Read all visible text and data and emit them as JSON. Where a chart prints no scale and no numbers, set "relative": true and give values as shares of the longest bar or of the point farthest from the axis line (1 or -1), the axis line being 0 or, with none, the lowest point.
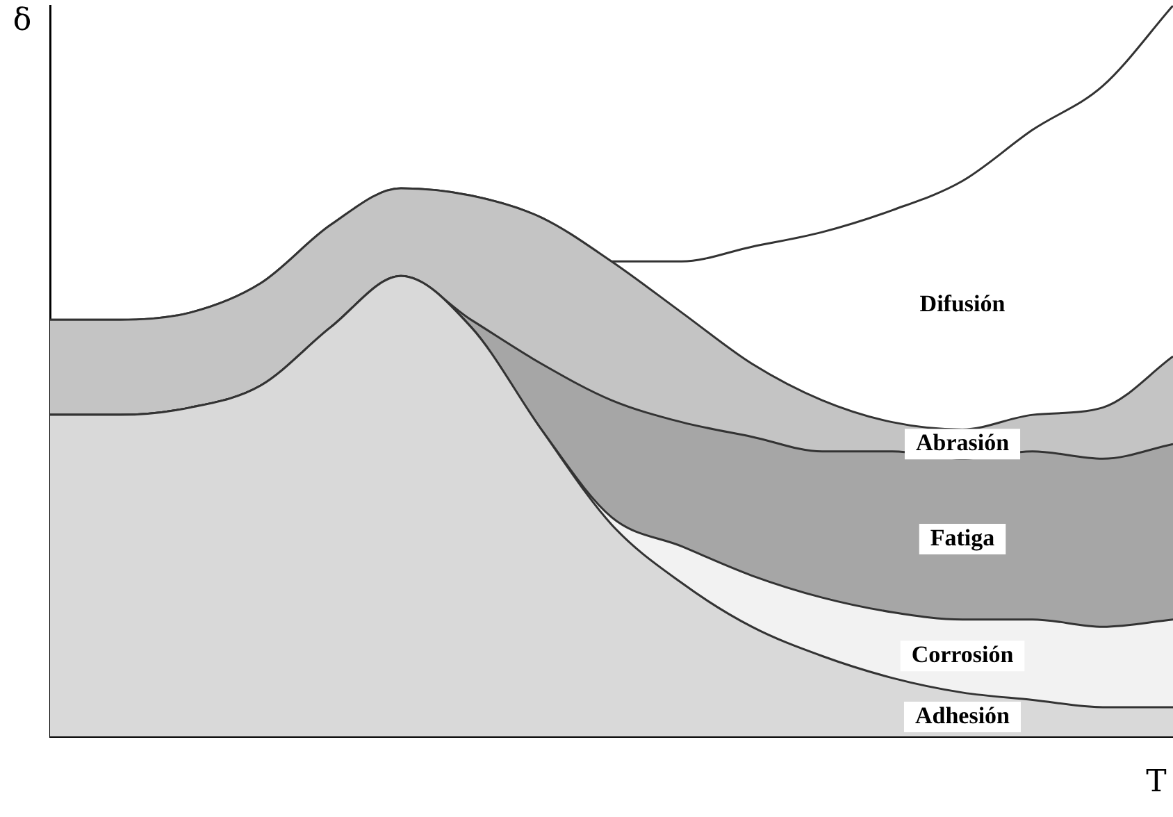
{
  "chart_data": {
    "type": "area",
    "xlabel": "T",
    "ylabel": "δ",
    "relative": true,
    "stacked": true,
    "categories": [
      null,
      null,
      null,
      null,
      null,
      null,
      null,
      null,
      null,
      null,
      null,
      null,
      null,
      null,
      null,
      null,
      null
    ],
    "series": [
      {
        "name": "Adhesión",
        "color": "#d9d9d9",
        "values": [
          0.44,
          0.44,
          0.45,
          0.48,
          0.56,
          0.63,
          0.56,
          0.42,
          0.29,
          0.21,
          0.15,
          0.11,
          0.08,
          0.06,
          0.05,
          0.04,
          0.04
        ]
      },
      {
        "name": "Corrosión",
        "color": "#f2f2f2",
        "values": [
          0,
          0,
          0,
          0,
          0,
          0,
          0,
          0,
          0.01,
          0.05,
          0.07,
          0.08,
          0.09,
          0.1,
          0.11,
          0.11,
          0.12
        ]
      },
      {
        "name": "Fatiga",
        "color": "#a6a6a6",
        "values": [
          0,
          0,
          0,
          0,
          0,
          0,
          0.01,
          0.09,
          0.16,
          0.17,
          0.19,
          0.2,
          0.22,
          0.22,
          0.23,
          0.23,
          0.24
        ]
      },
      {
        "name": "Abrasión",
        "color": "#c4c4c4",
        "values": [
          0.13,
          0.13,
          0.13,
          0.14,
          0.14,
          0.12,
          0.17,
          0.2,
          0.19,
          0.15,
          0.1,
          0.07,
          0.04,
          0.04,
          0.05,
          0.07,
          0.12
        ]
      },
      {
        "name": "Difusión",
        "color": "#ffffff",
        "values": [
          0,
          0,
          0,
          0,
          0,
          0,
          0,
          0,
          0,
          0.07,
          0.16,
          0.23,
          0.29,
          0.34,
          0.39,
          0.44,
          0.48
        ]
      }
    ]
  }
}
